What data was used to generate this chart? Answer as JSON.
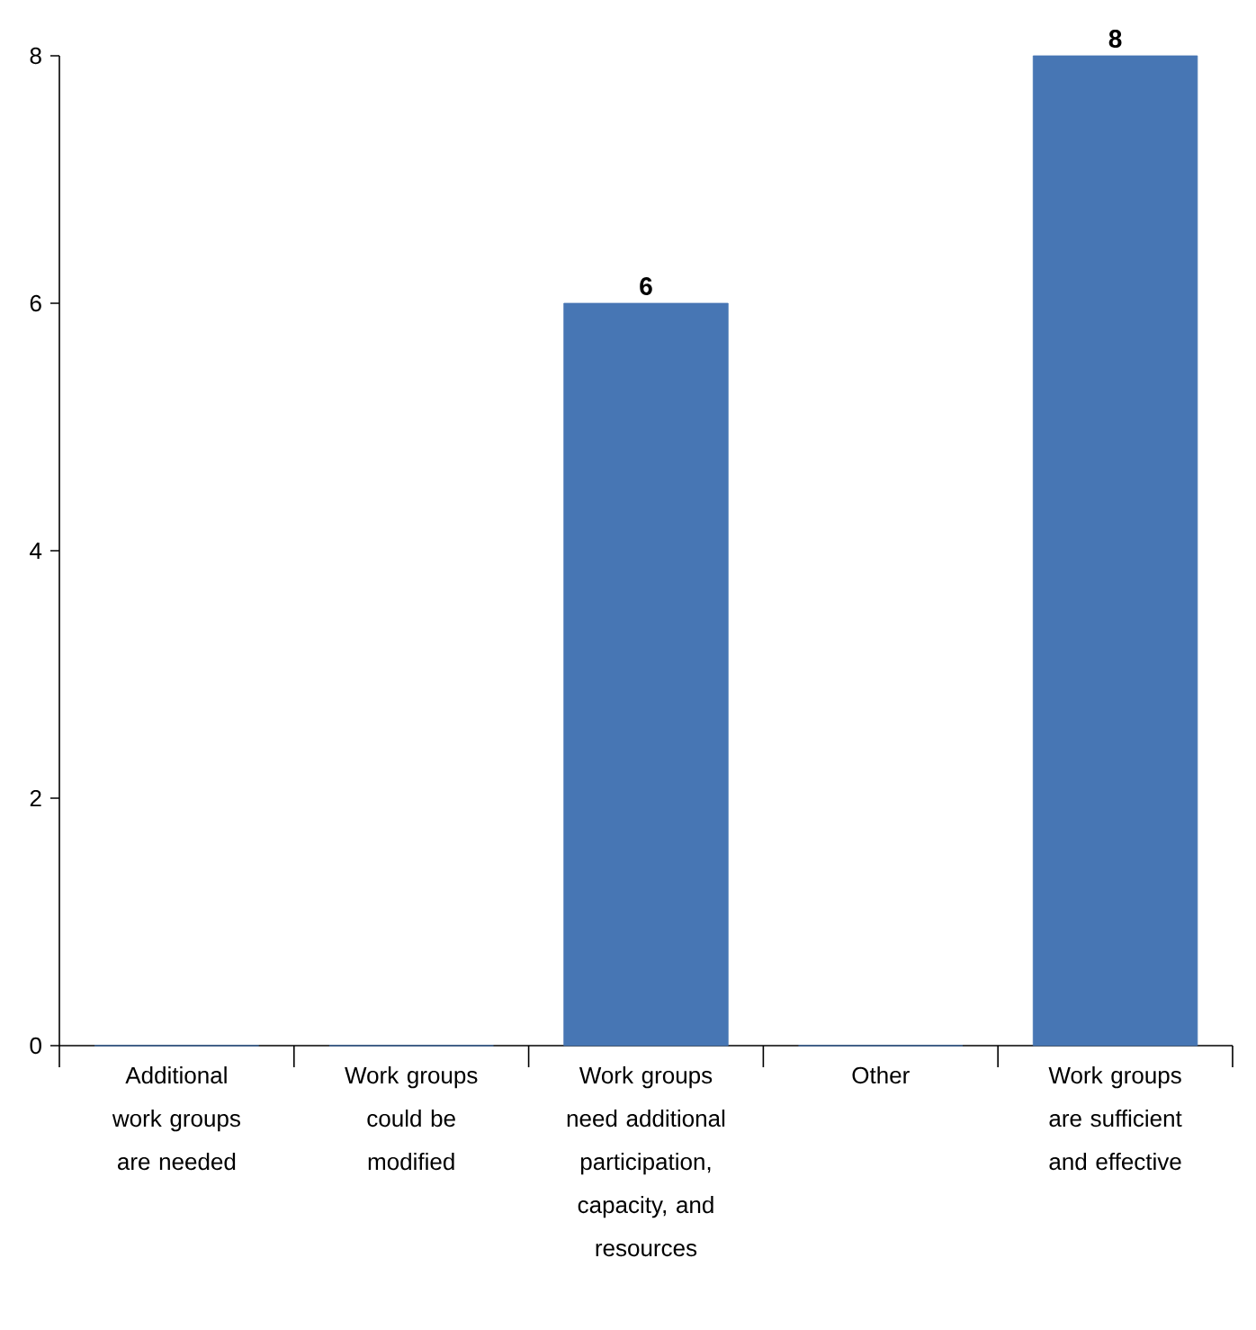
{
  "chart_data": {
    "type": "bar",
    "categories": [
      "Additional work groups are needed",
      "Work groups could be modified",
      "Work groups need additional participation, capacity, and resources",
      "Other",
      "Work groups are sufficient and effective"
    ],
    "values": [
      0,
      0,
      6,
      0,
      8
    ],
    "value_labels": [
      null,
      null,
      "6",
      null,
      "8"
    ],
    "color": "#4776b4",
    "ylim": [
      0,
      8
    ],
    "yticks": [
      0,
      2,
      4,
      6,
      8
    ]
  }
}
